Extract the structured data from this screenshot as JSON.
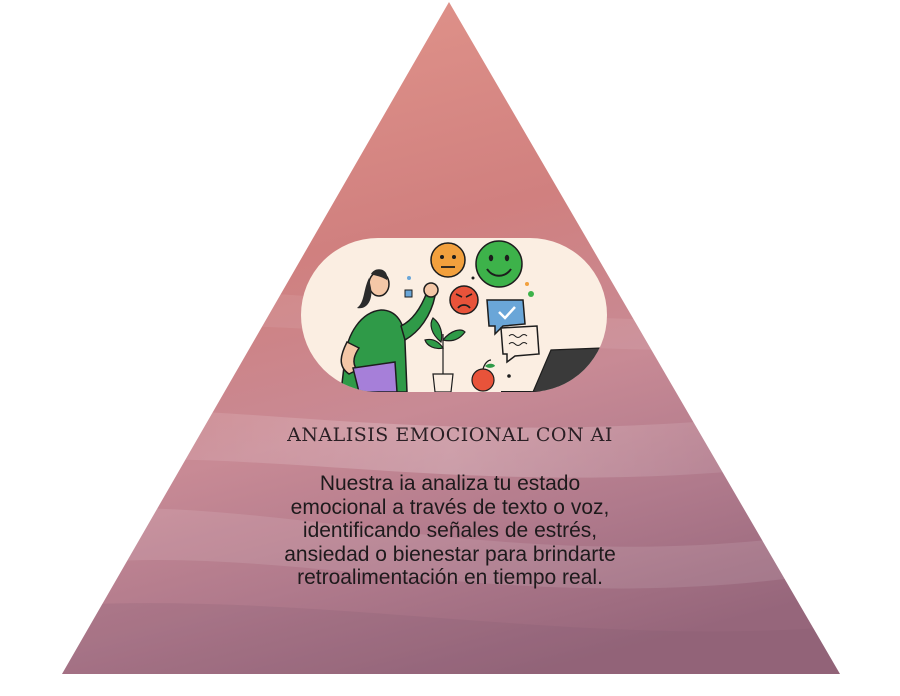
{
  "card": {
    "title": "ANALISIS EMOCIONAL CON AI",
    "body_lines": [
      "Nuestra ia analiza tu estado",
      "emocional a través de texto o voz,",
      "identificando señales de estrés,",
      "ansiedad o bienestar para brindarte",
      "retroalimentación en tiempo real."
    ]
  },
  "illustration": {
    "icons": [
      "neutral-face-icon",
      "happy-face-icon",
      "angry-face-icon",
      "chat-check-icon",
      "chat-bubble-icon",
      "plant-icon",
      "apple-icon",
      "laptop-icon"
    ]
  },
  "colors": {
    "pyramid_top": "#d98a84",
    "pyramid_mid": "#c8727f",
    "pyramid_bottom": "#9c6b80",
    "pill_bg": "#fbeee2",
    "shirt_green": "#2f9a48",
    "face_orange": "#f2a03d",
    "face_green": "#3db24a",
    "face_red": "#e8533a"
  }
}
